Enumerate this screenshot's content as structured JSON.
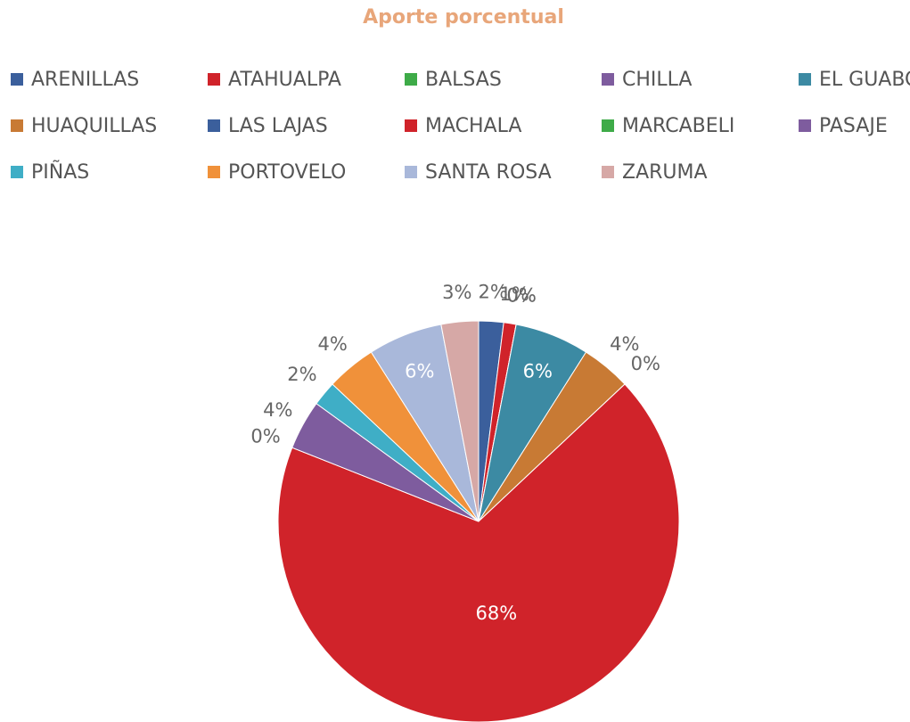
{
  "chart_data": {
    "type": "pie",
    "title": "Aporte porcentual",
    "categories": [
      "ARENILLAS",
      "ATAHUALPA",
      "BALSAS",
      "CHILLA",
      "EL GUABO",
      "HUAQUILLAS",
      "LAS LAJAS",
      "MACHALA",
      "MARCABELI",
      "PASAJE",
      "PIÑAS",
      "PORTOVELO",
      "SANTA ROSA",
      "ZARUMA"
    ],
    "values": [
      2,
      1,
      0,
      0,
      6,
      4,
      0,
      68,
      0,
      4,
      2,
      4,
      6,
      3
    ],
    "colors": [
      "#3b5f9c",
      "#d0232a",
      "#3eab48",
      "#7e5c9e",
      "#3c8aa3",
      "#c87a34",
      "#3b5f9c",
      "#d0232a",
      "#3eab48",
      "#7e5c9e",
      "#3faec6",
      "#f0913a",
      "#a9b8da",
      "#d6a8a6"
    ],
    "legend": "top"
  }
}
